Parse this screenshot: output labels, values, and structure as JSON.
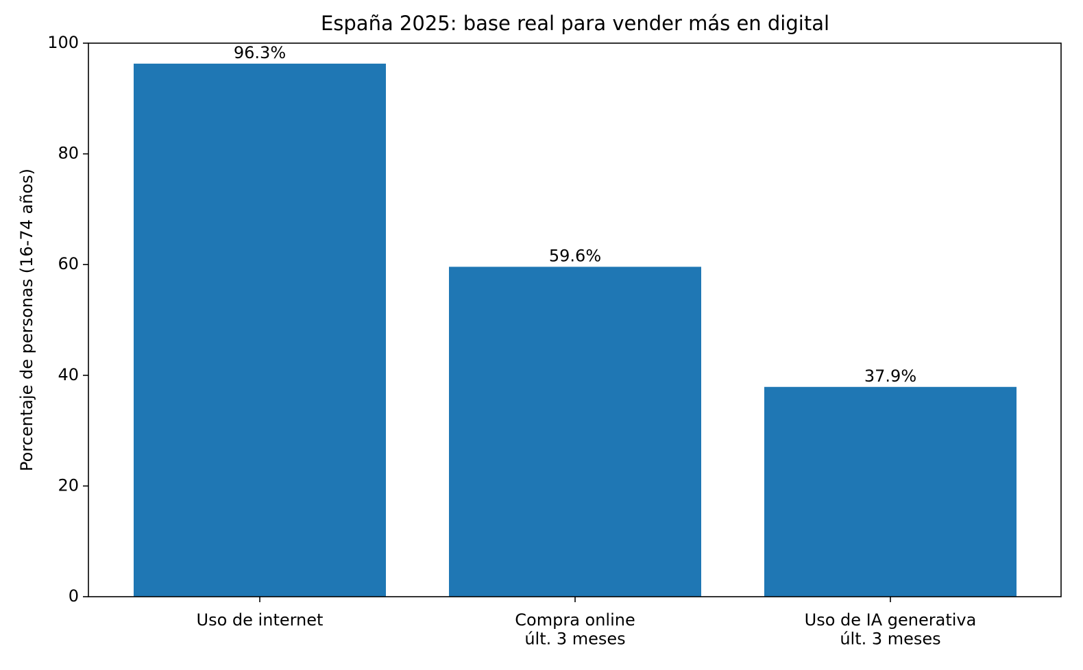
{
  "chart_data": {
    "type": "bar",
    "title": "España 2025: base real para vender más en digital",
    "y_label": "Porcentaje de personas (16-74 años)",
    "categories": [
      "Uso de internet",
      "Compra online\núlt. 3 meses",
      "Uso de IA generativa\núlt. 3 meses"
    ],
    "values": [
      96.3,
      59.6,
      37.9
    ],
    "value_labels": [
      "96.3%",
      "59.6%",
      "37.9%"
    ],
    "color": "#1f77b4",
    "ylim": [
      0,
      100
    ],
    "yticks": [
      0,
      20,
      40,
      60,
      80,
      100
    ],
    "grid": false
  }
}
